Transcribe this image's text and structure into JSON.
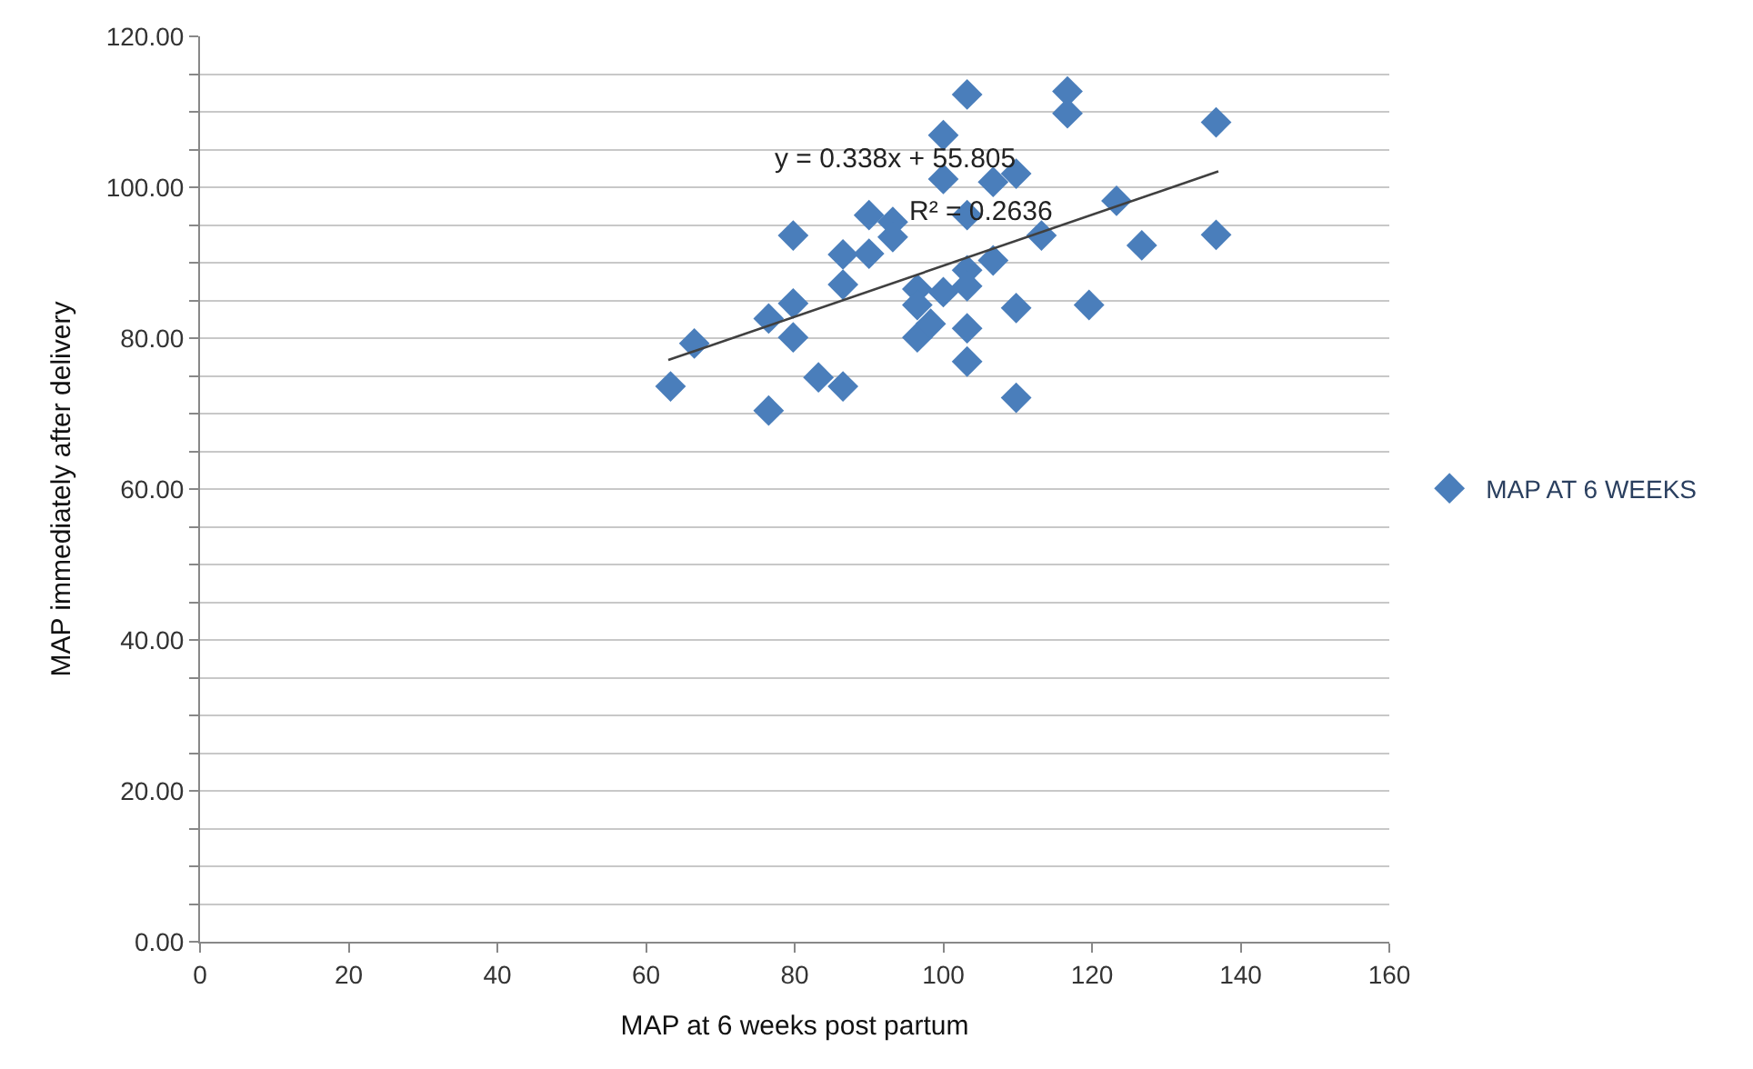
{
  "chart_data": {
    "type": "scatter",
    "xlabel": "MAP at 6 weeks post partum",
    "ylabel": "MAP immediately after delivery",
    "xlim": [
      0,
      160
    ],
    "xticks": [
      0,
      20,
      40,
      60,
      80,
      100,
      120,
      140,
      160
    ],
    "ylim": [
      0,
      120
    ],
    "yticks": [
      {
        "value": 0,
        "label": "0.00"
      },
      {
        "value": 5,
        "label": null
      },
      {
        "value": 10,
        "label": null
      },
      {
        "value": 15,
        "label": null
      },
      {
        "value": 20,
        "label": "20.00"
      },
      {
        "value": 25,
        "label": null
      },
      {
        "value": 30,
        "label": null
      },
      {
        "value": 35,
        "label": null
      },
      {
        "value": 40,
        "label": "40.00"
      },
      {
        "value": 45,
        "label": null
      },
      {
        "value": 50,
        "label": null
      },
      {
        "value": 55,
        "label": null
      },
      {
        "value": 60,
        "label": "60.00"
      },
      {
        "value": 65,
        "label": null
      },
      {
        "value": 70,
        "label": null
      },
      {
        "value": 75,
        "label": null
      },
      {
        "value": 80,
        "label": "80.00"
      },
      {
        "value": 85,
        "label": null
      },
      {
        "value": 90,
        "label": null
      },
      {
        "value": 95,
        "label": null
      },
      {
        "value": 100,
        "label": "100.00"
      },
      {
        "value": 105,
        "label": null
      },
      {
        "value": 110,
        "label": null
      },
      {
        "value": 115,
        "label": null
      },
      {
        "value": 120,
        "label": "120.00"
      }
    ],
    "grid": "y",
    "legend": "right",
    "marker": "diamond",
    "series": [
      {
        "name": "MAP AT 6 WEEKS",
        "color": "#4a7ebb",
        "x": [
          63.3,
          66.5,
          76.5,
          76.5,
          79.8,
          79.8,
          79.8,
          83.2,
          86.5,
          86.5,
          86.5,
          90,
          90,
          93.2,
          93.2,
          96.5,
          96.5,
          96.5,
          98.3,
          100,
          100,
          100,
          103.2,
          103.2,
          103.2,
          103.2,
          103.2,
          103.2,
          106.7,
          106.7,
          109.8,
          109.8,
          109.8,
          113.2,
          116.7,
          116.7,
          119.6,
          123.3,
          126.7,
          136.7,
          136.7
        ],
        "values": [
          73.6,
          79.3,
          70.4,
          82.6,
          84.6,
          80.1,
          93.6,
          74.8,
          73.6,
          87.1,
          91.1,
          96.3,
          91.2,
          95.4,
          93.4,
          86.5,
          84.4,
          80.1,
          81.9,
          86.1,
          106.9,
          101.1,
          112.3,
          96.3,
          89,
          86.9,
          81.3,
          76.9,
          90.3,
          100.7,
          101.8,
          84,
          72.1,
          93.6,
          112.7,
          109.8,
          84.4,
          98.2,
          92.3,
          108.6,
          93.7
        ]
      },
      {
        "type": "line",
        "color": "#404040",
        "x": [
          63,
          137
        ],
        "values": [
          77.1,
          102.1
        ],
        "marker": "none"
      }
    ],
    "annotations": [
      "y = 0.338x + 55.805",
      "R² = 0.2636"
    ]
  }
}
